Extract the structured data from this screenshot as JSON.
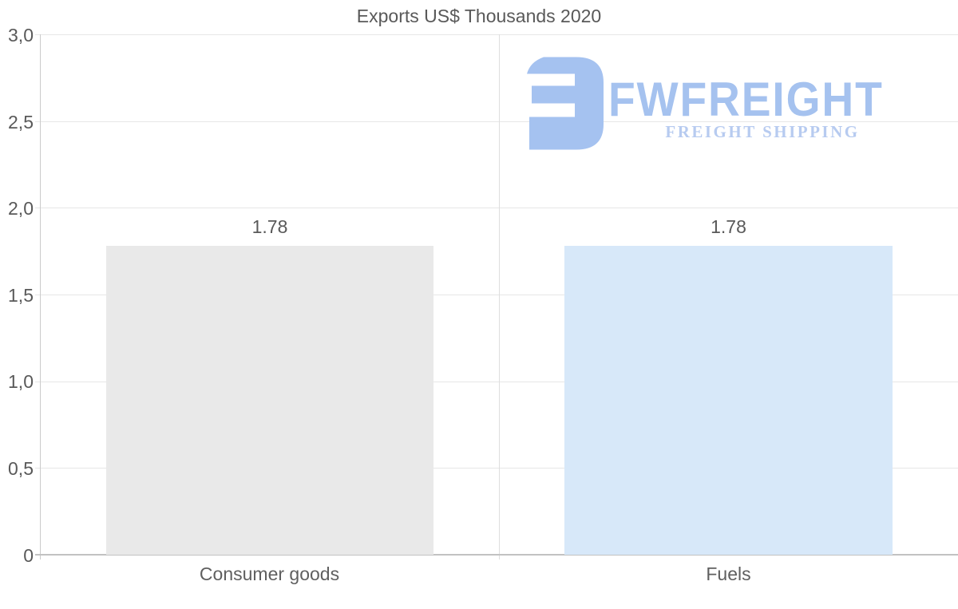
{
  "chart_data": {
    "type": "bar",
    "title": "Exports US$ Thousands 2020",
    "categories": [
      "Consumer goods",
      "Fuels"
    ],
    "values": [
      1.78,
      1.78
    ],
    "value_labels": [
      "1.78",
      "1.78"
    ],
    "series": [
      {
        "name": "Exports",
        "values": [
          1.78,
          1.78
        ]
      }
    ],
    "bar_colors": [
      "#e9e9e9",
      "#d7e8f9"
    ],
    "xlabel": "",
    "ylabel": "",
    "ylim": [
      0,
      3
    ],
    "ytick_interval": 0.5,
    "ytick_labels": [
      "3,0",
      "2,5",
      "2,0",
      "1,5",
      "1,0",
      "0,5",
      "0"
    ],
    "grid": "horizontal gridlines on, one vertical column separator",
    "legend": "none"
  },
  "watermark": {
    "brand": "FWFREIGHT",
    "tagline": "FREIGHT SHIPPING",
    "icon": "fwfreight-monogram-icon",
    "color_icon": "#a5c2f0",
    "color_brand": "#a5c2ef",
    "color_tagline": "#b7cbf0"
  },
  "colors": {
    "background": "#ffffff",
    "text": "#595959",
    "gridline": "#e7e7e7",
    "axis_line": "#c2c2c2",
    "bar_consumer_goods": "#e9e9e9",
    "bar_fuels": "#d7e8f9"
  }
}
